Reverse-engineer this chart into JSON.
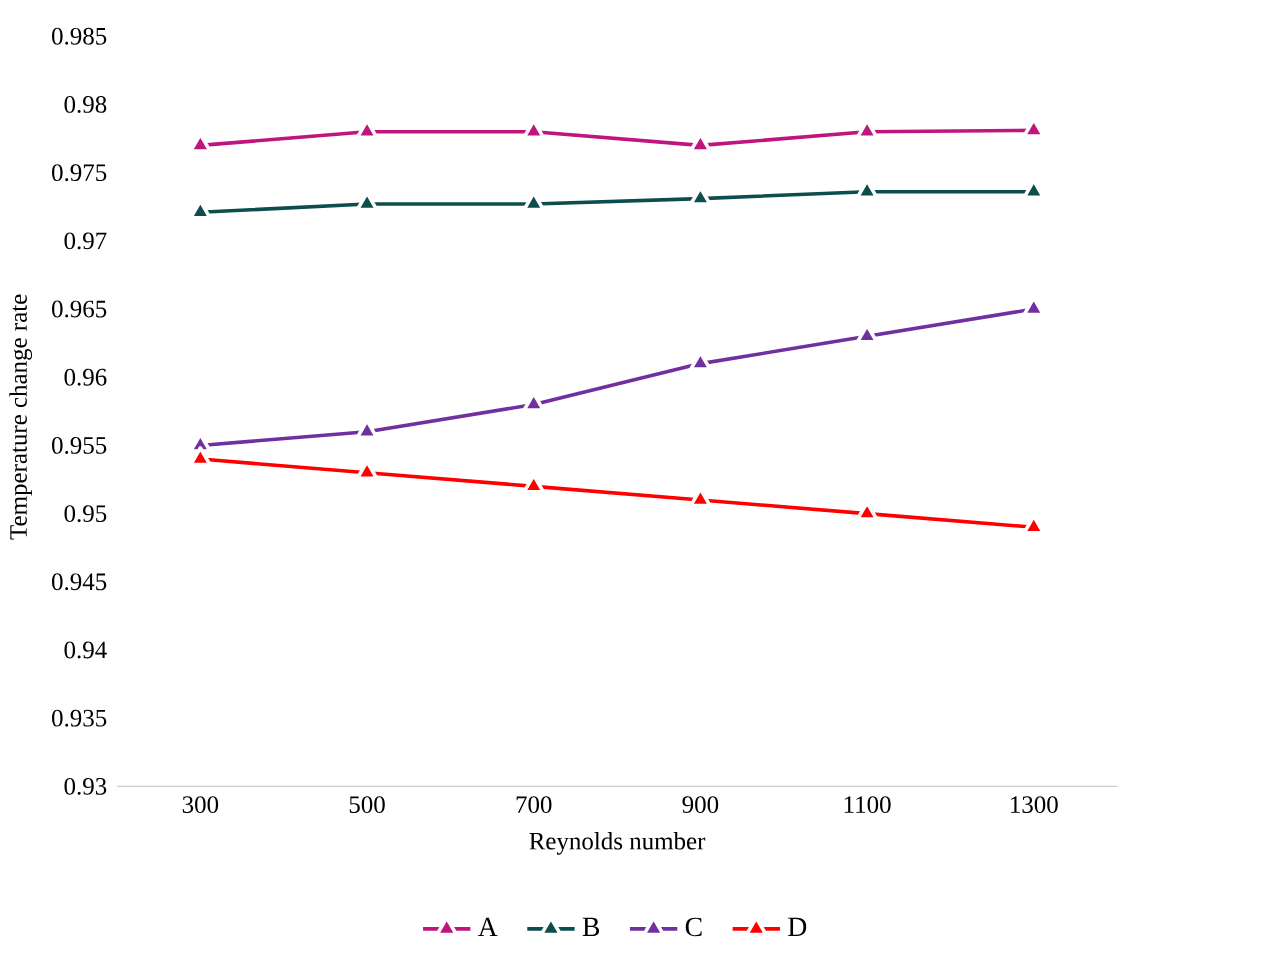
{
  "chart_data": {
    "type": "line",
    "xlabel": "Reynolds number",
    "ylabel": "Temperature change rate",
    "categories": [
      "300",
      "500",
      "700",
      "900",
      "1100",
      "1300"
    ],
    "series": [
      {
        "name": "A",
        "color": "#c0147f",
        "values": [
          0.977,
          0.978,
          0.978,
          0.977,
          0.978,
          0.9781
        ]
      },
      {
        "name": "B",
        "color": "#0d4d4d",
        "values": [
          0.9721,
          0.9727,
          0.9727,
          0.9731,
          0.9736,
          0.9736
        ]
      },
      {
        "name": "C",
        "color": "#7030a0",
        "values": [
          0.955,
          0.956,
          0.958,
          0.961,
          0.963,
          0.965
        ]
      },
      {
        "name": "D",
        "color": "#ff0000",
        "values": [
          0.954,
          0.953,
          0.952,
          0.951,
          0.95,
          0.949
        ]
      }
    ],
    "ylim": [
      0.93,
      0.985
    ],
    "yticks": [
      0.93,
      0.935,
      0.94,
      0.945,
      0.95,
      0.955,
      0.96,
      0.965,
      0.97,
      0.975,
      0.98,
      0.985
    ],
    "grid": false,
    "legend": "bottom",
    "marker": "triangle",
    "line_style": "solid"
  }
}
